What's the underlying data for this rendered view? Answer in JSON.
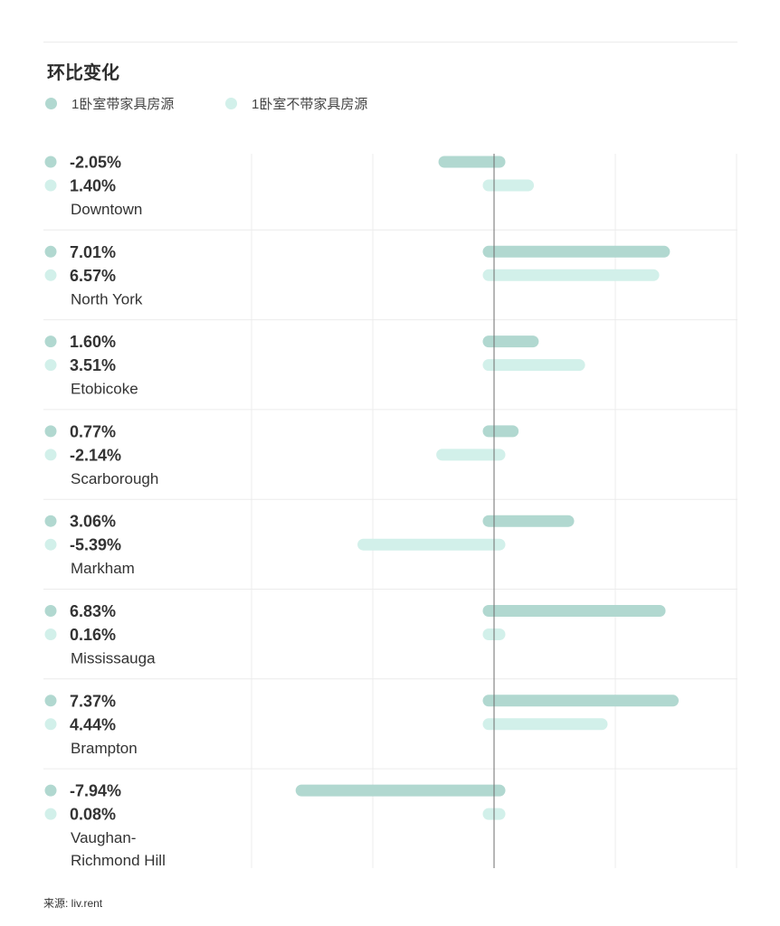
{
  "title": "环比变化",
  "legend": [
    {
      "label": "1卧室带家具房源",
      "color": "#b1d8d0"
    },
    {
      "label": "1卧室不带家具房源",
      "color": "#d2f0ea"
    }
  ],
  "chart_data": {
    "type": "bar",
    "orientation": "horizontal",
    "title": "环比变化",
    "xlim": [
      -10,
      10
    ],
    "grid": true,
    "categories": [
      "Downtown",
      "North York",
      "Etobicoke",
      "Scarborough",
      "Markham",
      "Mississauga",
      "Brampton",
      "Vaughan-\nRichmond Hill"
    ],
    "series": [
      {
        "name": "1卧室带家具房源",
        "color": "#b1d8d0",
        "values": [
          -2.05,
          7.01,
          1.6,
          0.77,
          3.06,
          6.83,
          7.37,
          -7.94
        ]
      },
      {
        "name": "1卧室不带家具房源",
        "color": "#d2f0ea",
        "values": [
          1.4,
          6.57,
          3.51,
          -2.14,
          -5.39,
          0.16,
          4.44,
          0.08
        ]
      }
    ],
    "value_labels": [
      [
        "-2.05%",
        "1.40%"
      ],
      [
        "7.01%",
        "6.57%"
      ],
      [
        "1.60%",
        "3.51%"
      ],
      [
        "0.77%",
        "-2.14%"
      ],
      [
        "3.06%",
        "-5.39%"
      ],
      [
        "6.83%",
        "0.16%"
      ],
      [
        "7.37%",
        "4.44%"
      ],
      [
        "-7.94%",
        "0.08%"
      ]
    ]
  },
  "footer": "来源: liv.rent"
}
